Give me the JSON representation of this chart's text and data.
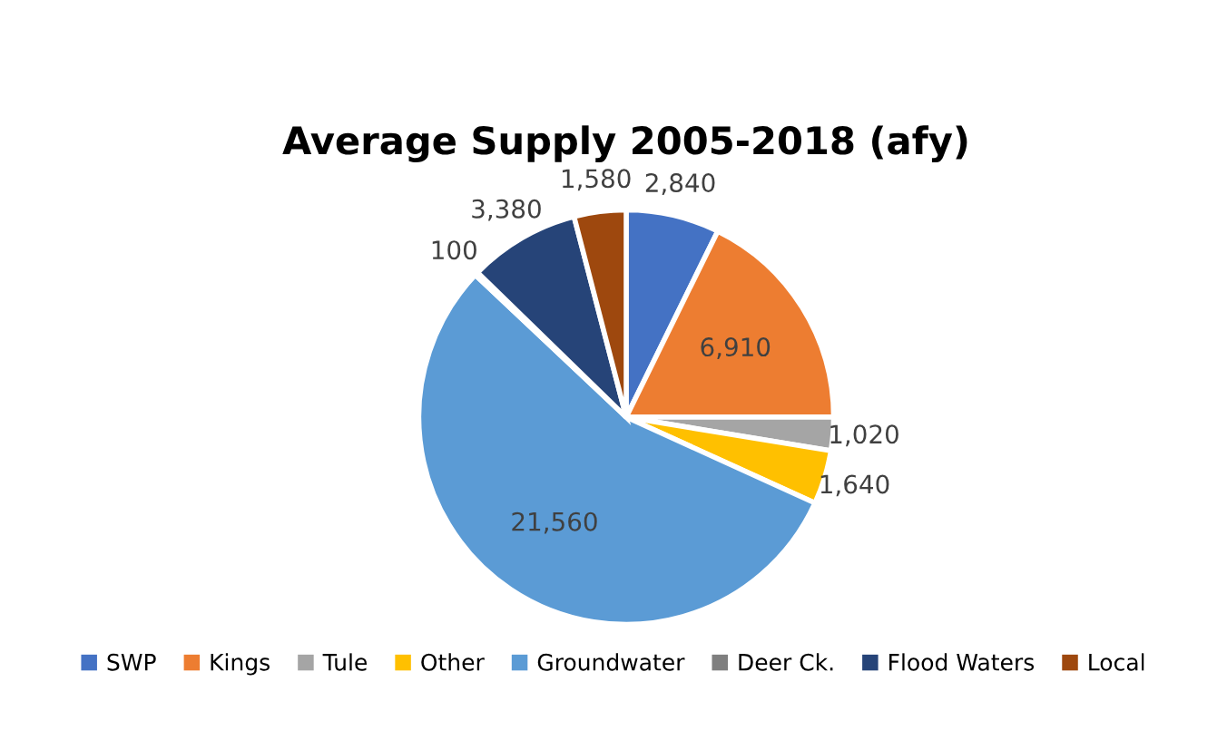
{
  "chart_data": {
    "type": "pie",
    "title": "Average Supply 2005-2018 (afy)",
    "categories": [
      "SWP",
      "Kings",
      "Tule",
      "Other",
      "Groundwater",
      "Deer Ck.",
      "Flood Waters",
      "Local"
    ],
    "values": [
      2840,
      6910,
      1020,
      1640,
      21560,
      100,
      3380,
      1580
    ],
    "colors": [
      "#4472c4",
      "#ed7d31",
      "#a5a5a5",
      "#ffc000",
      "#5b9bd5",
      "#7f7f7f",
      "#264478",
      "#9e480e"
    ],
    "value_labels": [
      "2,840",
      "6,910",
      "1,020",
      "1,640",
      "21,560",
      "100",
      "3,380",
      "1,580"
    ],
    "legend": "bottom"
  }
}
